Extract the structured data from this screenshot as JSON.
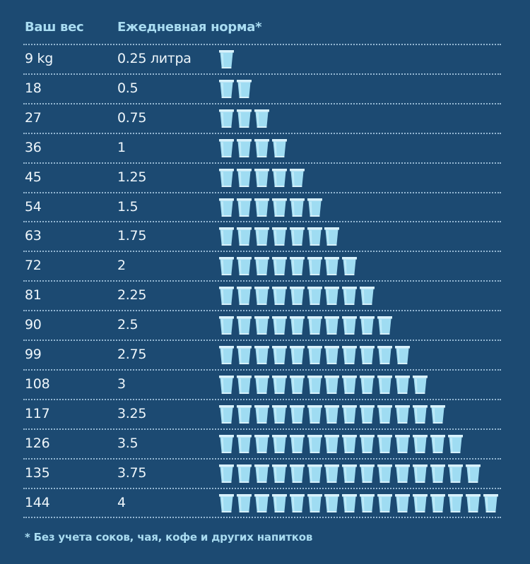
{
  "header": {
    "weight_label": "Ваш вес",
    "norm_label": "Ежедневная норма*"
  },
  "footnote": "* Без учета соков, чая, кофе и других напитков",
  "colors": {
    "background": "#1c4a72",
    "header_text": "#a9dcf1",
    "body_text": "#eef6fb",
    "glass_rim": "#d8f1fb",
    "glass_body": "#9fdcf2",
    "glass_highlight": "#c6ecf9"
  },
  "icons": {
    "glass": "water-glass-icon"
  },
  "rows": [
    {
      "weight": "9 kg",
      "norm": "0.25 литра",
      "glasses": 1
    },
    {
      "weight": "18",
      "norm": "0.5",
      "glasses": 2
    },
    {
      "weight": "27",
      "norm": "0.75",
      "glasses": 3
    },
    {
      "weight": "36",
      "norm": "1",
      "glasses": 4
    },
    {
      "weight": "45",
      "norm": "1.25",
      "glasses": 5
    },
    {
      "weight": "54",
      "norm": "1.5",
      "glasses": 6
    },
    {
      "weight": "63",
      "norm": "1.75",
      "glasses": 7
    },
    {
      "weight": "72",
      "norm": "2",
      "glasses": 8
    },
    {
      "weight": "81",
      "norm": "2.25",
      "glasses": 9
    },
    {
      "weight": "90",
      "norm": "2.5",
      "glasses": 10
    },
    {
      "weight": "99",
      "norm": "2.75",
      "glasses": 11
    },
    {
      "weight": "108",
      "norm": "3",
      "glasses": 12
    },
    {
      "weight": "117",
      "norm": "3.25",
      "glasses": 13
    },
    {
      "weight": "126",
      "norm": "3.5",
      "glasses": 14
    },
    {
      "weight": "135",
      "norm": "3.75",
      "glasses": 15
    },
    {
      "weight": "144",
      "norm": "4",
      "glasses": 16
    }
  ],
  "chart_data": {
    "type": "table",
    "title": "",
    "columns": [
      "Ваш вес",
      "Ежедневная норма*"
    ],
    "xlabel": "Ваш вес (kg)",
    "ylabel": "Ежедневная норма (литра)",
    "x": [
      9,
      18,
      27,
      36,
      45,
      54,
      63,
      72,
      81,
      90,
      99,
      108,
      117,
      126,
      135,
      144
    ],
    "values": [
      0.25,
      0.5,
      0.75,
      1,
      1.25,
      1.5,
      1.75,
      2,
      2.25,
      2.5,
      2.75,
      3,
      3.25,
      3.5,
      3.75,
      4
    ],
    "glass_counts": [
      1,
      2,
      3,
      4,
      5,
      6,
      7,
      8,
      9,
      10,
      11,
      12,
      13,
      14,
      15,
      16
    ],
    "unit_per_glass_liters": 0.25,
    "annotation": "* Без учета соков, чая, кофе и других напитков"
  }
}
